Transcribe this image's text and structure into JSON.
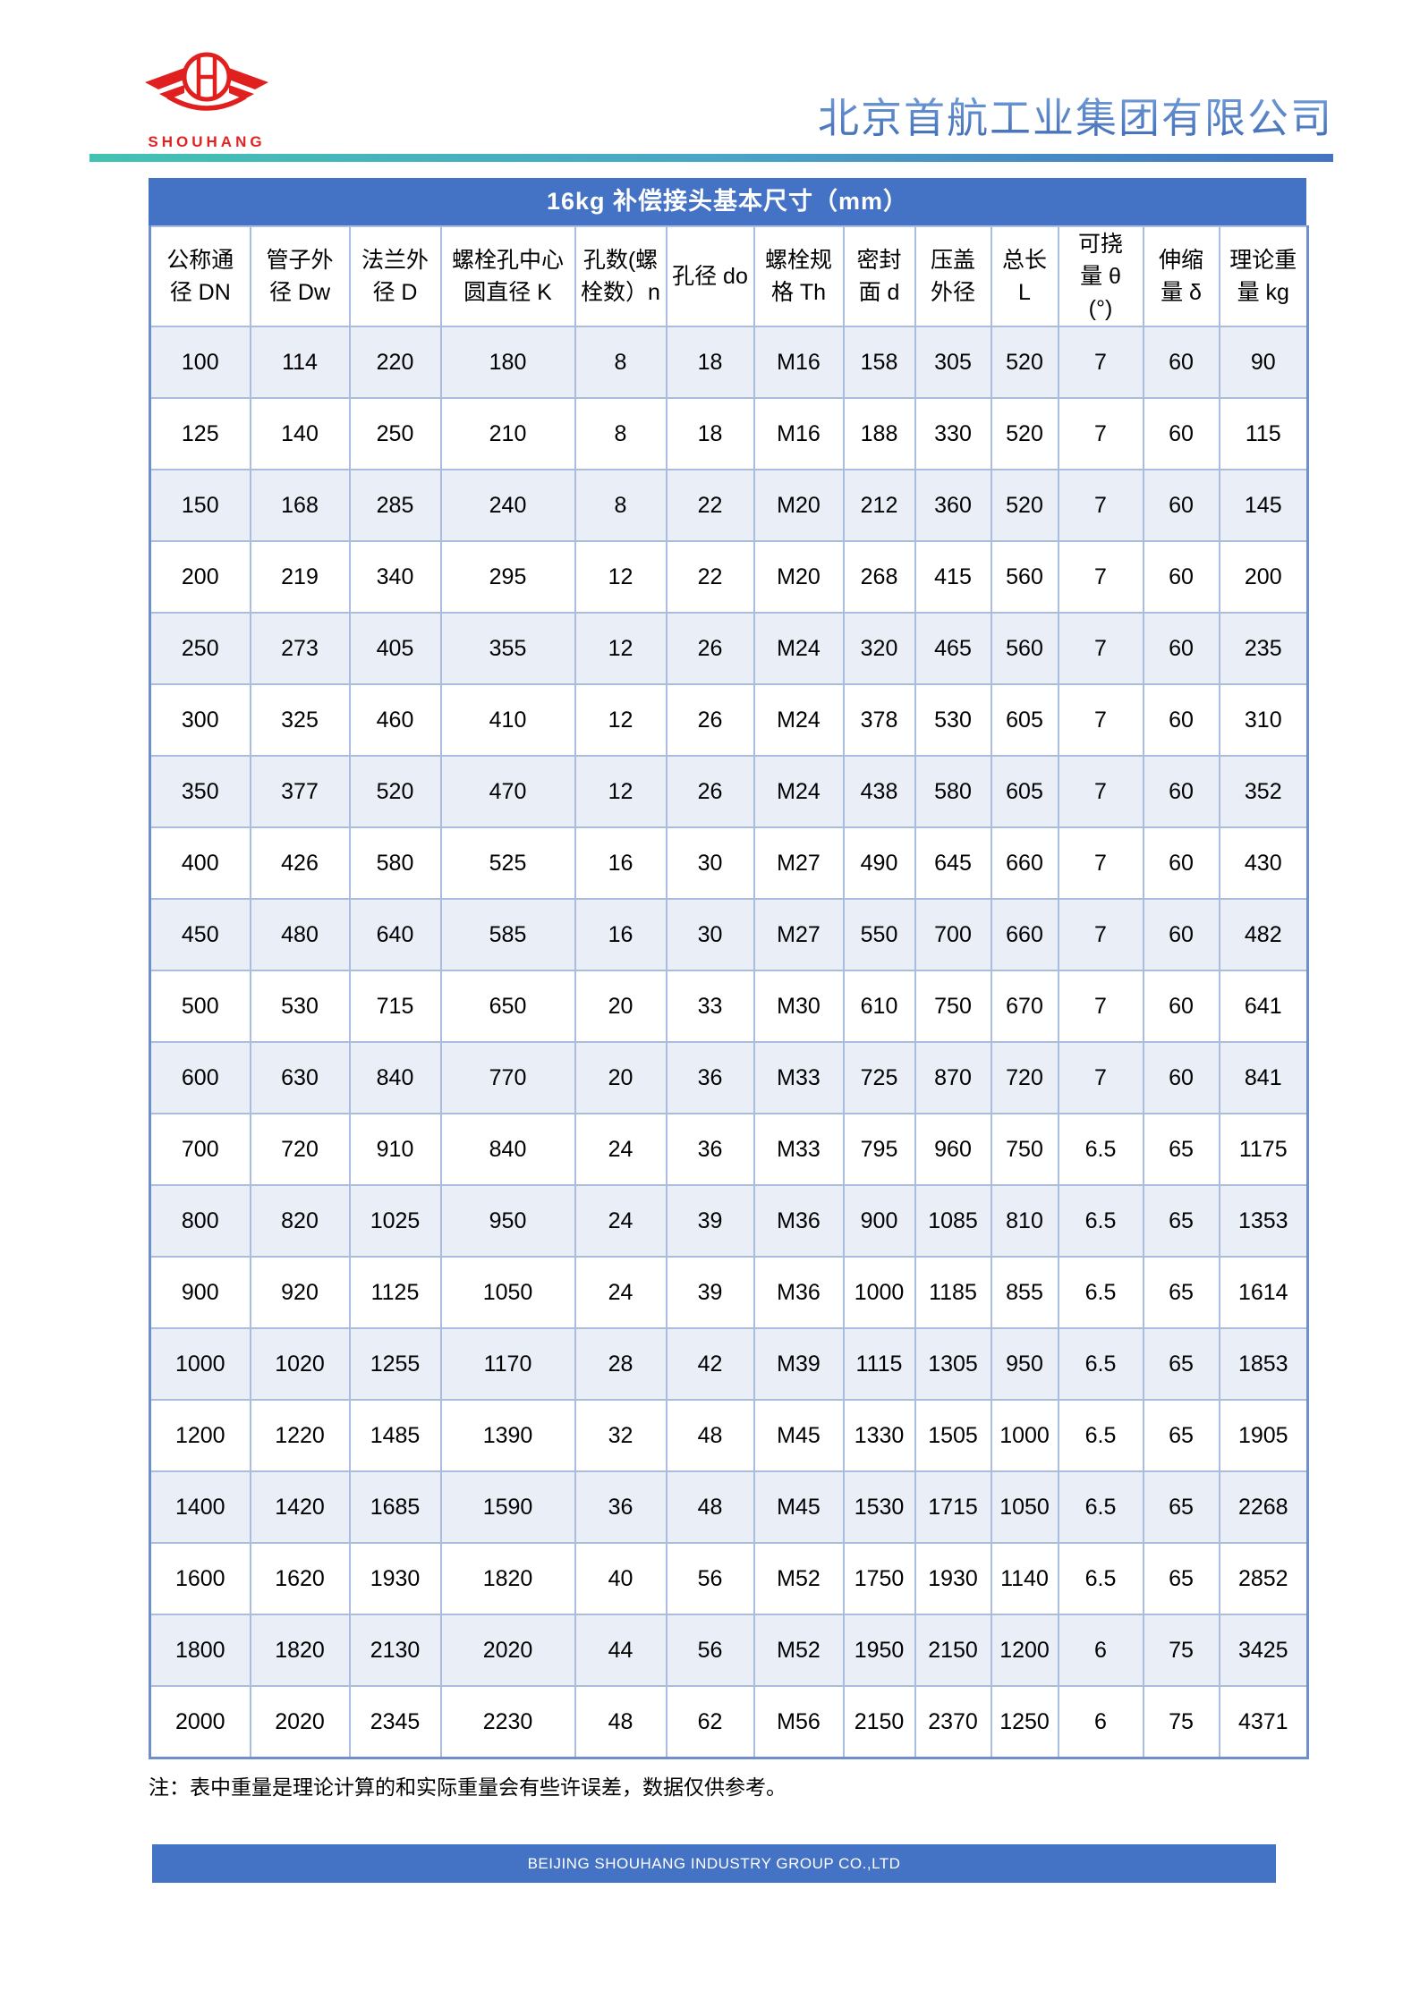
{
  "header": {
    "logo_text": "SHOUHANG",
    "company_name": "北京首航工业集团有限公司"
  },
  "table": {
    "title": "16kg 补偿接头基本尺寸（mm）",
    "columns": [
      "公称通\n径 DN",
      "管子外\n径 Dw",
      "法兰外\n径 D",
      "螺栓孔中心\n圆直径 K",
      "孔数(螺\n栓数）n",
      "孔径 do",
      "螺栓规\n格 Th",
      "密封\n面 d",
      "压盖\n外径",
      "总长\nL",
      "可挠\n量 θ\n(°)",
      "伸缩\n量 δ",
      "理论重\n量 kg"
    ],
    "rows": [
      [
        "100",
        "114",
        "220",
        "180",
        "8",
        "18",
        "M16",
        "158",
        "305",
        "520",
        "7",
        "60",
        "90"
      ],
      [
        "125",
        "140",
        "250",
        "210",
        "8",
        "18",
        "M16",
        "188",
        "330",
        "520",
        "7",
        "60",
        "115"
      ],
      [
        "150",
        "168",
        "285",
        "240",
        "8",
        "22",
        "M20",
        "212",
        "360",
        "520",
        "7",
        "60",
        "145"
      ],
      [
        "200",
        "219",
        "340",
        "295",
        "12",
        "22",
        "M20",
        "268",
        "415",
        "560",
        "7",
        "60",
        "200"
      ],
      [
        "250",
        "273",
        "405",
        "355",
        "12",
        "26",
        "M24",
        "320",
        "465",
        "560",
        "7",
        "60",
        "235"
      ],
      [
        "300",
        "325",
        "460",
        "410",
        "12",
        "26",
        "M24",
        "378",
        "530",
        "605",
        "7",
        "60",
        "310"
      ],
      [
        "350",
        "377",
        "520",
        "470",
        "12",
        "26",
        "M24",
        "438",
        "580",
        "605",
        "7",
        "60",
        "352"
      ],
      [
        "400",
        "426",
        "580",
        "525",
        "16",
        "30",
        "M27",
        "490",
        "645",
        "660",
        "7",
        "60",
        "430"
      ],
      [
        "450",
        "480",
        "640",
        "585",
        "16",
        "30",
        "M27",
        "550",
        "700",
        "660",
        "7",
        "60",
        "482"
      ],
      [
        "500",
        "530",
        "715",
        "650",
        "20",
        "33",
        "M30",
        "610",
        "750",
        "670",
        "7",
        "60",
        "641"
      ],
      [
        "600",
        "630",
        "840",
        "770",
        "20",
        "36",
        "M33",
        "725",
        "870",
        "720",
        "7",
        "60",
        "841"
      ],
      [
        "700",
        "720",
        "910",
        "840",
        "24",
        "36",
        "M33",
        "795",
        "960",
        "750",
        "6.5",
        "65",
        "1175"
      ],
      [
        "800",
        "820",
        "1025",
        "950",
        "24",
        "39",
        "M36",
        "900",
        "1085",
        "810",
        "6.5",
        "65",
        "1353"
      ],
      [
        "900",
        "920",
        "1125",
        "1050",
        "24",
        "39",
        "M36",
        "1000",
        "1185",
        "855",
        "6.5",
        "65",
        "1614"
      ],
      [
        "1000",
        "1020",
        "1255",
        "1170",
        "28",
        "42",
        "M39",
        "1115",
        "1305",
        "950",
        "6.5",
        "65",
        "1853"
      ],
      [
        "1200",
        "1220",
        "1485",
        "1390",
        "32",
        "48",
        "M45",
        "1330",
        "1505",
        "1000",
        "6.5",
        "65",
        "1905"
      ],
      [
        "1400",
        "1420",
        "1685",
        "1590",
        "36",
        "48",
        "M45",
        "1530",
        "1715",
        "1050",
        "6.5",
        "65",
        "2268"
      ],
      [
        "1600",
        "1620",
        "1930",
        "1820",
        "40",
        "56",
        "M52",
        "1750",
        "1930",
        "1140",
        "6.5",
        "65",
        "2852"
      ],
      [
        "1800",
        "1820",
        "2130",
        "2020",
        "44",
        "56",
        "M52",
        "1950",
        "2150",
        "1200",
        "6",
        "75",
        "3425"
      ],
      [
        "2000",
        "2020",
        "2345",
        "2230",
        "48",
        "62",
        "M56",
        "2150",
        "2370",
        "1250",
        "6",
        "75",
        "4371"
      ]
    ]
  },
  "note": "注：表中重量是理论计算的和实际重量会有些许误差，数据仅供参考。",
  "footer": {
    "text": "BEIJING SHOUHANG INDUSTRY GROUP CO.,LTD"
  },
  "colors": {
    "accent_blue": "#4472C4",
    "row_alt_blue": "#E9EEF7",
    "grid_line_blue": "#A8BDE0",
    "divider_teal": "#43C2B2",
    "logo_red": "#E02222",
    "company_name_blue": "#4B7BC8"
  }
}
